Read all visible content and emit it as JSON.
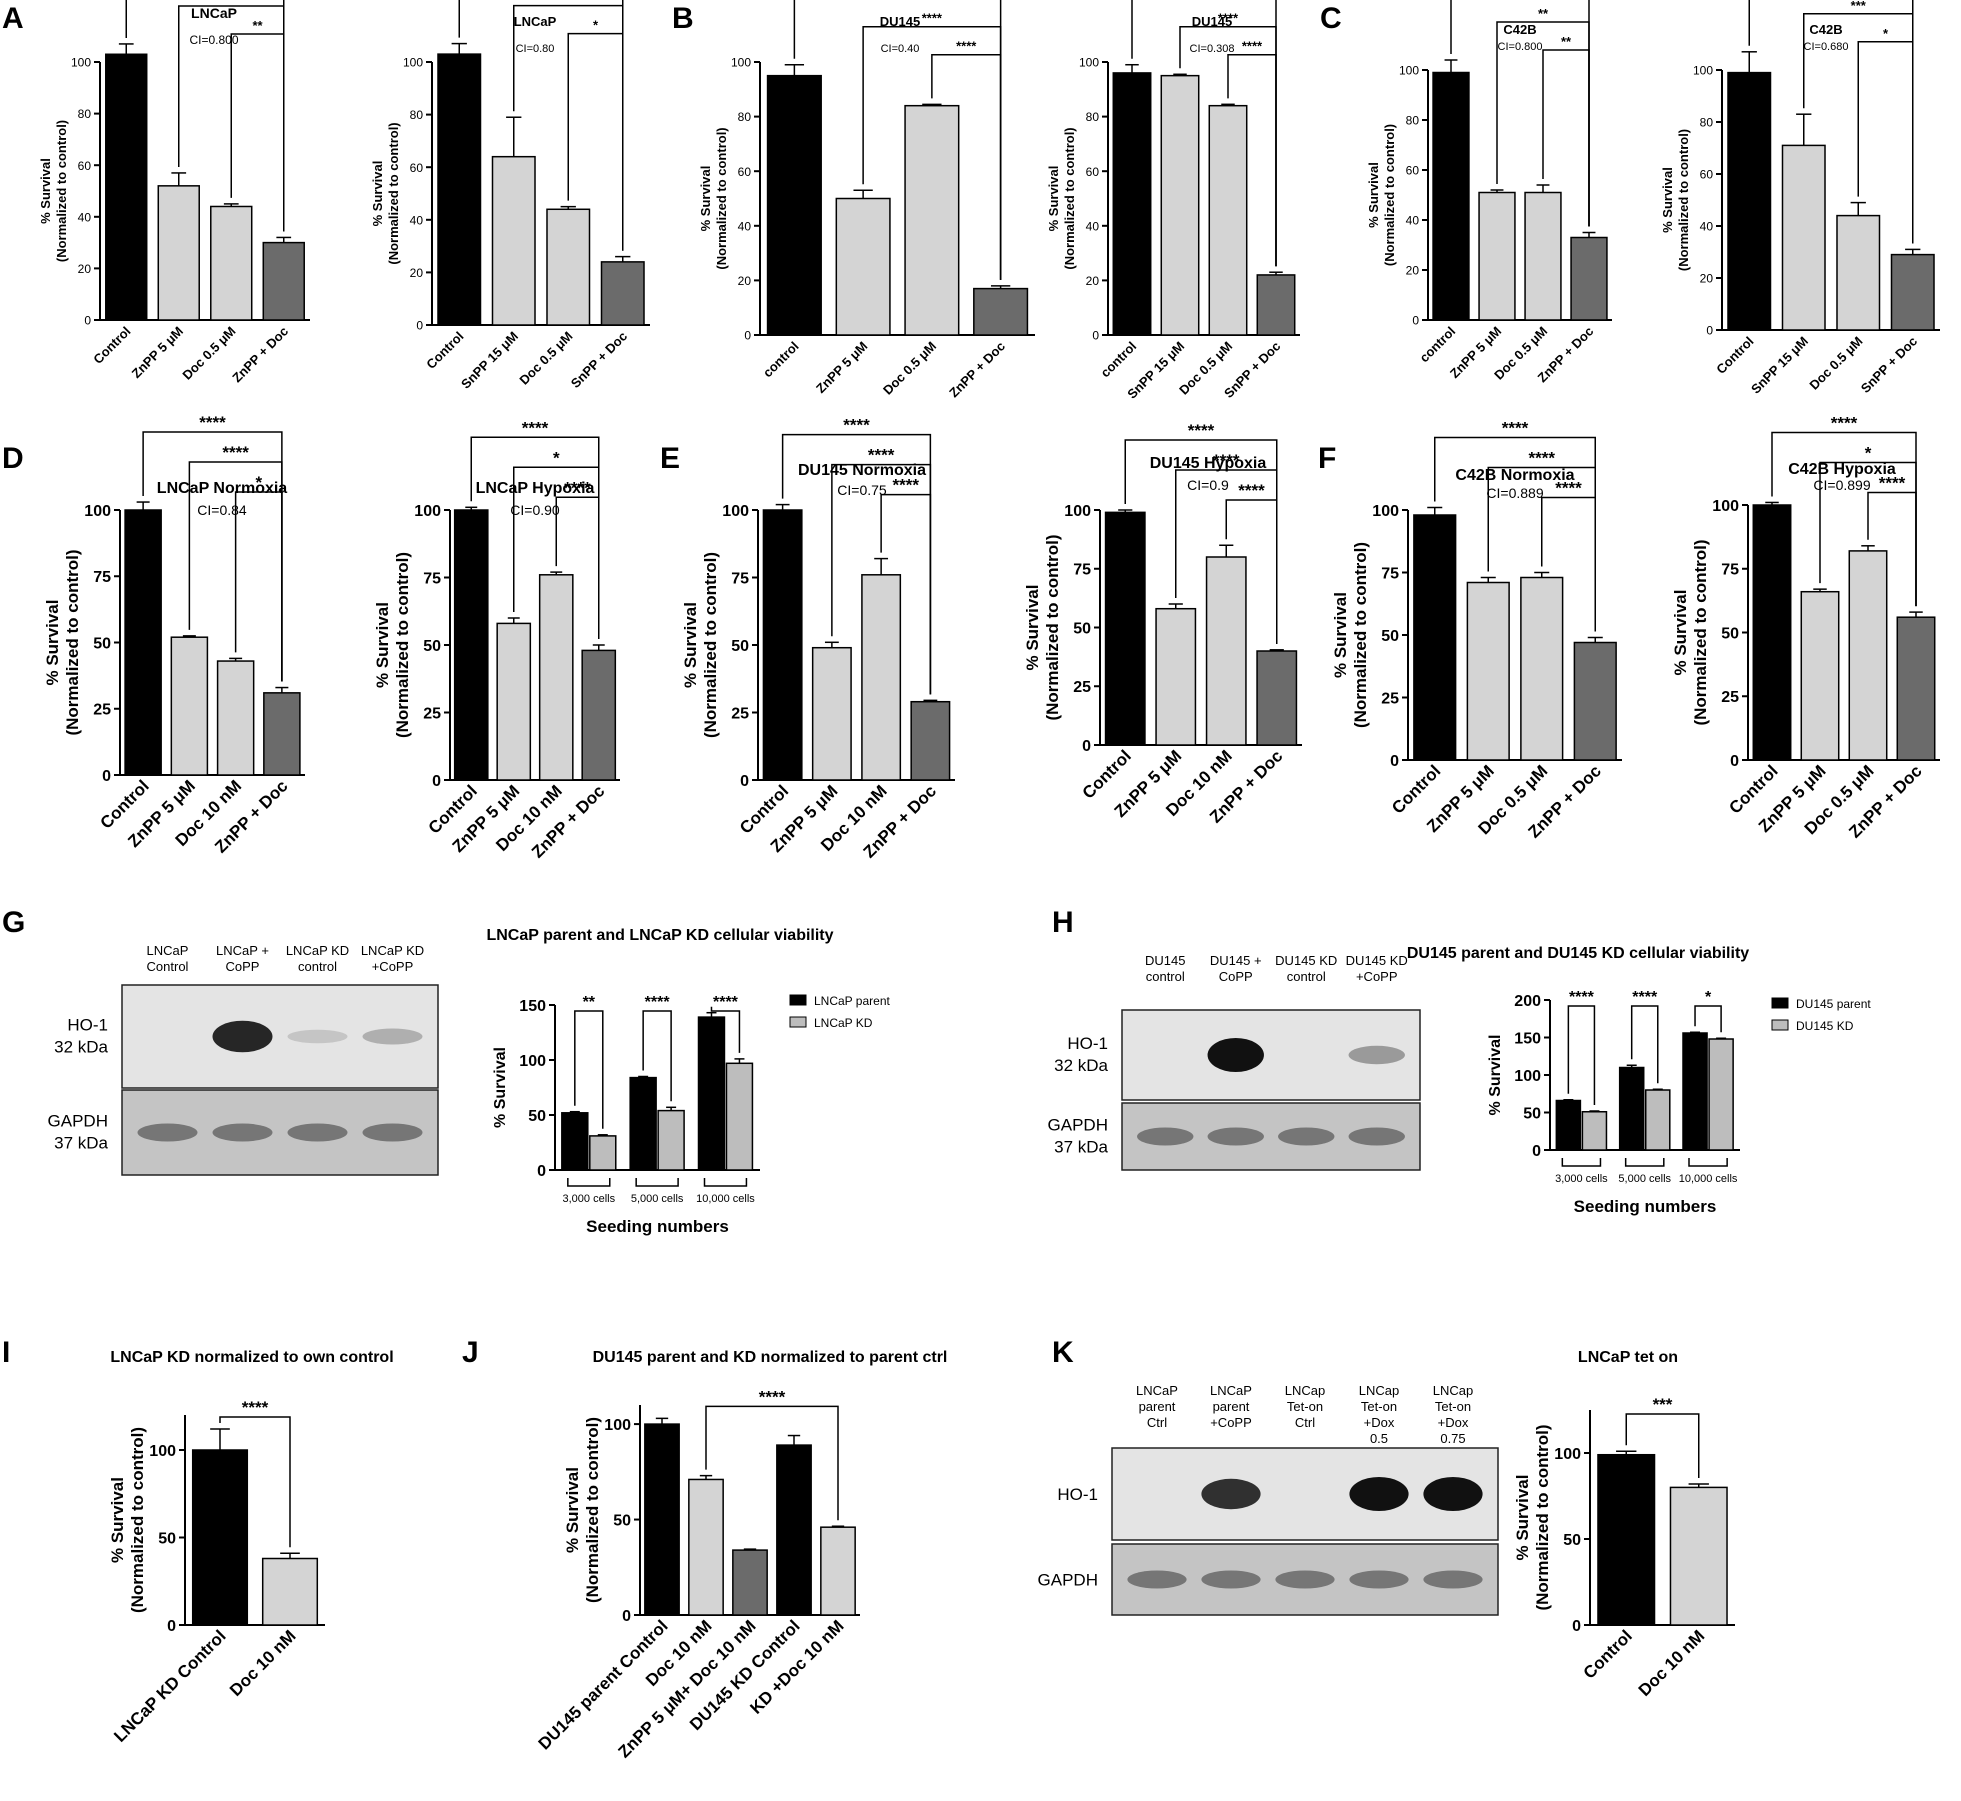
{
  "panel_letters": [
    "A",
    "B",
    "C",
    "D",
    "E",
    "F",
    "G",
    "H",
    "I",
    "J",
    "K"
  ],
  "colors": {
    "black": "#000000",
    "light": "#d4d4d4",
    "dark": "#6b6b6b",
    "blot_bg": "#d8d8d8",
    "band": "#111111"
  },
  "chart_data": [
    {
      "id": "A1",
      "type": "bar",
      "title": "LNCaP",
      "subtitle": "CI=0.800",
      "ylabel": "% Survival (Normalized to control)",
      "ylim": [
        0,
        100
      ],
      "yticks": [
        0,
        20,
        40,
        60,
        80,
        100
      ],
      "categories": [
        "Control",
        "ZnPP 5 μM",
        "Doc 0.5 μM",
        "ZnPP + Doc"
      ],
      "values": [
        103,
        52,
        44,
        30
      ],
      "errors": [
        4,
        5,
        1,
        2
      ],
      "brackets": [
        {
          "from": 0,
          "to": 3,
          "label": "****"
        },
        {
          "from": 1,
          "to": 3,
          "label": "***"
        },
        {
          "from": 2,
          "to": 3,
          "label": "**"
        }
      ]
    },
    {
      "id": "A2",
      "type": "bar",
      "title": "LNCaP",
      "subtitle": "CI=0.80",
      "ylabel": "% Survival (Normalized to control)",
      "ylim": [
        0,
        100
      ],
      "yticks": [
        0,
        20,
        40,
        60,
        80,
        100
      ],
      "categories": [
        "Control",
        "SnPP 15 μM",
        "Doc 0.5 μM",
        "SnPP + Doc"
      ],
      "values": [
        103,
        64,
        44,
        24
      ],
      "errors": [
        4,
        15,
        1,
        2
      ],
      "brackets": [
        {
          "from": 0,
          "to": 3,
          "label": "****"
        },
        {
          "from": 1,
          "to": 3,
          "label": "***"
        },
        {
          "from": 2,
          "to": 3,
          "label": "*"
        }
      ]
    },
    {
      "id": "B1",
      "type": "bar",
      "title": "DU145",
      "subtitle": "CI=0.40",
      "ylabel": "% Survival (Normalized to control)",
      "ylim": [
        0,
        100
      ],
      "yticks": [
        0,
        20,
        40,
        60,
        80,
        100
      ],
      "categories": [
        "control",
        "ZnPP 5 μM",
        "Doc 0.5 μM",
        "ZnPP + Doc"
      ],
      "values": [
        95,
        50,
        84,
        17
      ],
      "errors": [
        4,
        3,
        0.5,
        1
      ],
      "brackets": [
        {
          "from": 0,
          "to": 3,
          "label": "****"
        },
        {
          "from": 1,
          "to": 3,
          "label": "****"
        },
        {
          "from": 2,
          "to": 3,
          "label": "****"
        }
      ]
    },
    {
      "id": "B2",
      "type": "bar",
      "title": "DU145",
      "subtitle": "CI=0.308",
      "ylabel": "% Survival (Normalized to control)",
      "ylim": [
        0,
        100
      ],
      "yticks": [
        0,
        20,
        40,
        60,
        80,
        100
      ],
      "categories": [
        "control",
        "SnPP 15 μM",
        "Doc 0.5 μM",
        "SnPP + Doc"
      ],
      "values": [
        96,
        95,
        84,
        22
      ],
      "errors": [
        3,
        0.5,
        0.5,
        1
      ],
      "brackets": [
        {
          "from": 0,
          "to": 3,
          "label": "****"
        },
        {
          "from": 1,
          "to": 3,
          "label": "****"
        },
        {
          "from": 2,
          "to": 3,
          "label": "****"
        }
      ]
    },
    {
      "id": "C1",
      "type": "bar",
      "title": "C42B",
      "subtitle": "CI=0.800",
      "ylabel": "% Survival (Normalized to control)",
      "ylim": [
        0,
        100
      ],
      "yticks": [
        0,
        20,
        40,
        60,
        80,
        100
      ],
      "categories": [
        "control",
        "ZnPP 5 μM",
        "Doc 0.5 μM",
        "ZnPP + Doc"
      ],
      "values": [
        99,
        51,
        51,
        33
      ],
      "errors": [
        5,
        1,
        3,
        2
      ],
      "brackets": [
        {
          "from": 0,
          "to": 3,
          "label": "****"
        },
        {
          "from": 1,
          "to": 3,
          "label": "**"
        },
        {
          "from": 2,
          "to": 3,
          "label": "**"
        }
      ]
    },
    {
      "id": "C2",
      "type": "bar",
      "title": "C42B",
      "subtitle": "CI=0.680",
      "ylabel": "% Survival (Normalized to control)",
      "ylim": [
        0,
        100
      ],
      "yticks": [
        0,
        20,
        40,
        60,
        80,
        100
      ],
      "categories": [
        "Control",
        "SnPP 15 μM",
        "Doc 0.5 μM",
        "SnPP + Doc"
      ],
      "values": [
        99,
        71,
        44,
        29
      ],
      "errors": [
        8,
        12,
        5,
        2
      ],
      "brackets": [
        {
          "from": 0,
          "to": 3,
          "label": "****"
        },
        {
          "from": 1,
          "to": 3,
          "label": "***"
        },
        {
          "from": 2,
          "to": 3,
          "label": "*"
        }
      ]
    },
    {
      "id": "D1",
      "type": "bar",
      "title": "LNCaP Normoxia",
      "subtitle": "CI=0.84",
      "ylabel": "% Survival (Normalized to control)",
      "ylim": [
        0,
        100
      ],
      "yticks": [
        0,
        25,
        50,
        75,
        100
      ],
      "categories": [
        "Control",
        "ZnPP 5 μM",
        "Doc 10 nM",
        "ZnPP + Doc"
      ],
      "values": [
        100,
        52,
        43,
        31
      ],
      "errors": [
        3,
        0.5,
        1,
        2
      ],
      "brackets": [
        {
          "from": 0,
          "to": 3,
          "label": "****"
        },
        {
          "from": 1,
          "to": 3,
          "label": "****"
        },
        {
          "from": 2,
          "to": 3,
          "label": "*"
        }
      ]
    },
    {
      "id": "D2",
      "type": "bar",
      "title": "LNCaP Hypoxia",
      "subtitle": "CI=0.90",
      "ylabel": "% Survival (Normalized to control)",
      "ylim": [
        0,
        100
      ],
      "yticks": [
        0,
        25,
        50,
        75,
        100
      ],
      "categories": [
        "Control",
        "ZnPP 5 μM",
        "Doc 10 nM",
        "ZnPP + Doc"
      ],
      "values": [
        100,
        58,
        76,
        48
      ],
      "errors": [
        1,
        2,
        1,
        2
      ],
      "brackets": [
        {
          "from": 0,
          "to": 3,
          "label": "****"
        },
        {
          "from": 1,
          "to": 3,
          "label": "*"
        },
        {
          "from": 2,
          "to": 3,
          "label": "****"
        }
      ]
    },
    {
      "id": "E1",
      "type": "bar",
      "title": "DU145 Normoxia",
      "subtitle": "CI=0.75",
      "ylabel": "% Survival (Normalized to control)",
      "ylim": [
        0,
        100
      ],
      "yticks": [
        0,
        25,
        50,
        75,
        100
      ],
      "categories": [
        "Control",
        "ZnPP 5 μM",
        "Doc 10 nM",
        "ZnPP + Doc"
      ],
      "values": [
        100,
        49,
        76,
        29
      ],
      "errors": [
        2,
        2,
        6,
        0.5
      ],
      "brackets": [
        {
          "from": 0,
          "to": 3,
          "label": "****"
        },
        {
          "from": 1,
          "to": 3,
          "label": "****"
        },
        {
          "from": 2,
          "to": 3,
          "label": "****"
        }
      ]
    },
    {
      "id": "E2",
      "type": "bar",
      "title": "DU145 Hypoxia",
      "subtitle": "CI=0.9",
      "ylabel": "% Survival (Normalized to control)",
      "ylim": [
        0,
        100
      ],
      "yticks": [
        0,
        25,
        50,
        75,
        100
      ],
      "categories": [
        "Control",
        "ZnPP 5 μM",
        "Doc 10 nM",
        "ZnPP + Doc"
      ],
      "values": [
        99,
        58,
        80,
        40
      ],
      "errors": [
        1,
        2,
        5,
        0.5
      ],
      "brackets": [
        {
          "from": 0,
          "to": 3,
          "label": "****"
        },
        {
          "from": 1,
          "to": 3,
          "label": "****"
        },
        {
          "from": 2,
          "to": 3,
          "label": "****"
        }
      ]
    },
    {
      "id": "F1",
      "type": "bar",
      "title": "C42B Normoxia",
      "subtitle": "CI=0.889",
      "ylabel": "% Survival (Normalized to control)",
      "ylim": [
        0,
        100
      ],
      "yticks": [
        0,
        25,
        50,
        75,
        100
      ],
      "categories": [
        "Control",
        "ZnPP 5 μM",
        "Doc 0.5 μM",
        "ZnPP + Doc"
      ],
      "values": [
        98,
        71,
        73,
        47
      ],
      "errors": [
        3,
        2,
        2,
        2
      ],
      "brackets": [
        {
          "from": 0,
          "to": 3,
          "label": "****"
        },
        {
          "from": 1,
          "to": 3,
          "label": "****"
        },
        {
          "from": 2,
          "to": 3,
          "label": "****"
        }
      ]
    },
    {
      "id": "F2",
      "type": "bar",
      "title": "C42B Hypoxia",
      "subtitle": "CI=0.899",
      "ylabel": "% Survival (Normalized to control)",
      "ylim": [
        0,
        100
      ],
      "yticks": [
        0,
        25,
        50,
        75,
        100
      ],
      "categories": [
        "Control",
        "ZnPP 5 μM",
        "Doc 0.5 μM",
        "ZnPP + Doc"
      ],
      "values": [
        100,
        66,
        82,
        56
      ],
      "errors": [
        1,
        1,
        2,
        2
      ],
      "brackets": [
        {
          "from": 0,
          "to": 3,
          "label": "****"
        },
        {
          "from": 1,
          "to": 3,
          "label": "*"
        },
        {
          "from": 2,
          "to": 3,
          "label": "****"
        }
      ]
    },
    {
      "id": "G",
      "type": "grouped-bar",
      "title": "LNCaP parent and LNCaP KD cellular viability",
      "ylabel": "% Survival",
      "xlabel": "Seeding numbers",
      "ylim": [
        0,
        150
      ],
      "yticks": [
        0,
        50,
        100,
        150
      ],
      "categories": [
        "3,000 cells",
        "5,000 cells",
        "10,000 cells"
      ],
      "series": [
        {
          "name": "LNCaP parent",
          "values": [
            52,
            84,
            139
          ],
          "errors": [
            1,
            1,
            4
          ]
        },
        {
          "name": "LNCaP KD",
          "values": [
            31,
            54,
            97
          ],
          "errors": [
            1,
            3,
            4
          ]
        }
      ],
      "brackets": [
        "**",
        "****",
        "****"
      ],
      "legend": "right"
    },
    {
      "id": "H",
      "type": "grouped-bar",
      "title": "DU145 parent and DU145 KD cellular viability",
      "ylabel": "% Survival",
      "xlabel": "Seeding numbers",
      "ylim": [
        0,
        200
      ],
      "yticks": [
        0,
        50,
        100,
        150,
        200
      ],
      "categories": [
        "3,000 cells",
        "5,000 cells",
        "10,000 cells"
      ],
      "series": [
        {
          "name": "DU145 parent",
          "values": [
            66,
            110,
            156
          ],
          "errors": [
            1,
            3,
            1
          ]
        },
        {
          "name": "DU145 KD",
          "values": [
            51,
            80,
            148
          ],
          "errors": [
            1,
            1,
            1
          ]
        }
      ],
      "brackets": [
        "****",
        "****",
        "*"
      ],
      "legend": "right"
    },
    {
      "id": "I",
      "type": "bar",
      "title": "LNCaP KD normalized to own control",
      "ylabel": "% Survival (Normalized to control)",
      "ylim": [
        0,
        120
      ],
      "yticks": [
        0,
        50,
        100
      ],
      "categories": [
        "LNCaP KD Control",
        "Doc 10 nM"
      ],
      "values": [
        100,
        38
      ],
      "errors": [
        12,
        3
      ],
      "brackets": [
        {
          "from": 0,
          "to": 1,
          "label": "****"
        }
      ]
    },
    {
      "id": "J",
      "type": "bar",
      "title": "DU145 parent and KD normalized to parent ctrl",
      "ylabel": "% Survival (Normalized to control)",
      "ylim": [
        0,
        110
      ],
      "yticks": [
        0,
        50,
        100
      ],
      "categories": [
        "DU145 parent Control",
        "Doc 10 nM",
        "ZnPP 5 μM+ Doc 10 nM",
        "DU145 KD Control",
        "KD +Doc 10 nM"
      ],
      "values": [
        100,
        71,
        34,
        89,
        46
      ],
      "errors": [
        3,
        2,
        0.5,
        5,
        0.5
      ],
      "brackets": [
        {
          "from": 1,
          "to": 4,
          "label": "****"
        }
      ]
    },
    {
      "id": "K",
      "type": "bar",
      "title": "LNCaP tet on",
      "ylabel": "% Survival (Normalized to control)",
      "ylim": [
        0,
        125
      ],
      "yticks": [
        0,
        50,
        100
      ],
      "categories": [
        "Control",
        "Doc 10 nM"
      ],
      "values": [
        99,
        80
      ],
      "errors": [
        2,
        2
      ],
      "brackets": [
        {
          "from": 0,
          "to": 1,
          "label": "***"
        }
      ]
    }
  ],
  "blots": [
    {
      "id": "G",
      "lanes": [
        "LNCaP Control",
        "LNCaP + CoPP",
        "LNCaP KD control",
        "LNCaP KD +CoPP"
      ],
      "rows": [
        {
          "label1": "HO-1",
          "label2": "32 kDa"
        },
        {
          "label1": "GAPDH",
          "label2": "37 kDa"
        }
      ]
    },
    {
      "id": "H",
      "lanes": [
        "DU145 control",
        "DU145 + CoPP",
        "DU145 KD control",
        "DU145 KD +CoPP"
      ],
      "rows": [
        {
          "label1": "HO-1",
          "label2": "32 kDa"
        },
        {
          "label1": "GAPDH",
          "label2": "37 kDa"
        }
      ]
    },
    {
      "id": "K",
      "lanes": [
        "LNCaP parent Ctrl",
        "LNCaP parent +CoPP",
        "LNCap Tet-on Ctrl",
        "LNCap Tet-on +Dox 0.5",
        "LNCap Tet-on +Dox 0.75"
      ],
      "rows": [
        {
          "label1": "HO-1",
          "label2": ""
        },
        {
          "label1": "GAPDH",
          "label2": ""
        }
      ]
    }
  ]
}
